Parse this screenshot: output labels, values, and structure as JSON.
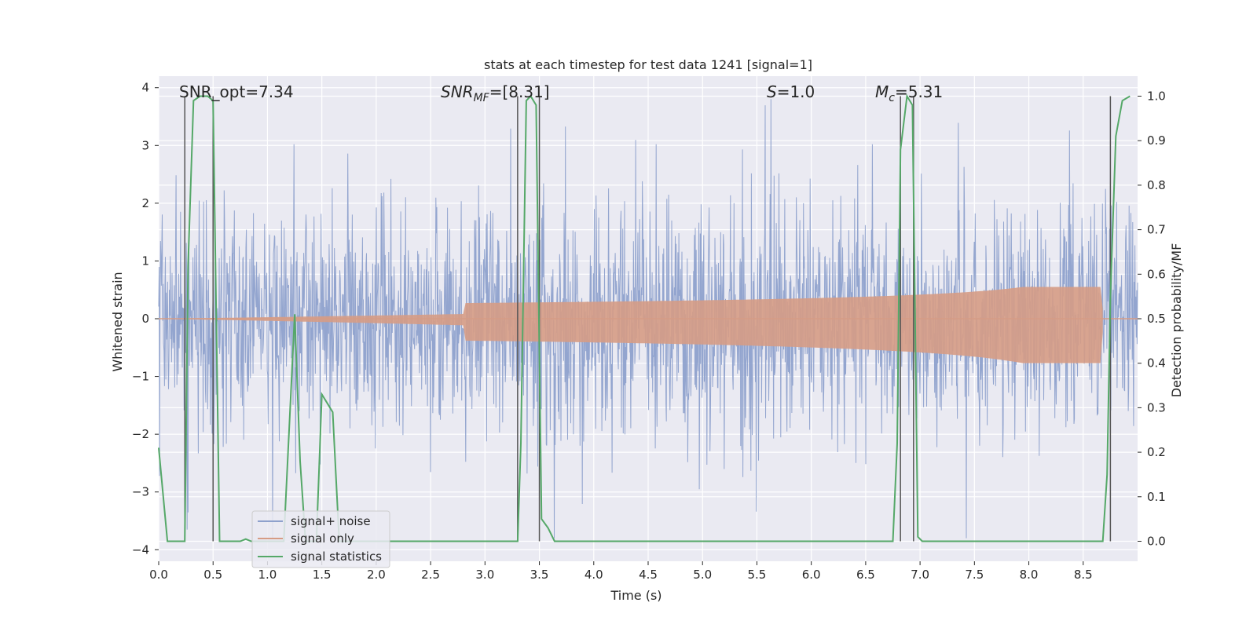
{
  "chart_data": {
    "type": "line",
    "title": "stats at each timestep for test data 1241 [signal=1]",
    "xlabel": "Time (s)",
    "ylabel_left": "Whitened strain",
    "ylabel_right": "Detection probability/MF",
    "xlim": [
      0.0,
      9.0
    ],
    "ylim_left": [
      -4.2,
      4.2
    ],
    "ylim_right": [
      -0.045,
      1.045
    ],
    "x_ticks": [
      "0.0",
      "0.5",
      "1.0",
      "1.5",
      "2.0",
      "2.5",
      "3.0",
      "3.5",
      "4.0",
      "4.5",
      "5.0",
      "5.5",
      "6.0",
      "6.5",
      "7.0",
      "7.5",
      "8.0",
      "8.5"
    ],
    "y_left_ticks": [
      "4",
      "3",
      "2",
      "1",
      "0",
      "−1",
      "−2",
      "−3",
      "−4"
    ],
    "y_right_ticks": [
      "1.0",
      "0.9",
      "0.8",
      "0.7",
      "0.6",
      "0.5",
      "0.4",
      "0.3",
      "0.2",
      "0.1",
      "0.0"
    ],
    "grid": true,
    "legend_position": "lower-left",
    "annotations": {
      "snr_opt": "SNR_opt=7.34",
      "snr_mf_base": "SNR",
      "snr_mf_sub": "MF",
      "snr_mf_value": "=[8.31]",
      "s_letter": "S",
      "s_value": "=1.0",
      "mc_letter": "M",
      "mc_sub": "c",
      "mc_value": "=5.31"
    },
    "series": [
      {
        "name": "signal+ noise",
        "color": "#8ea1cc",
        "description_range": [
          -3.8,
          3.8
        ],
        "typical_envelope": 1.7
      },
      {
        "name": "signal only",
        "color": "#d69c85",
        "chirp_peak_time": 8.68,
        "chirp_peak_amplitude": 0.55
      },
      {
        "name": "signal statistics",
        "color": "#55a868",
        "x": [
          0.0,
          0.08,
          0.24,
          0.27,
          0.32,
          0.38,
          0.45,
          0.5,
          0.56,
          0.6,
          0.75,
          0.8,
          0.85,
          1.0,
          1.15,
          1.25,
          1.3,
          1.35,
          1.45,
          1.5,
          1.55,
          1.6,
          1.66,
          1.75,
          3.3,
          3.33,
          3.38,
          3.42,
          3.47,
          3.52,
          3.58,
          3.64,
          3.75,
          6.75,
          6.79,
          6.82,
          6.88,
          6.93,
          6.98,
          7.02,
          7.1,
          8.68,
          8.72,
          8.75,
          8.8,
          8.86,
          8.93
        ],
        "values": [
          0.21,
          0.0,
          0.0,
          0.62,
          0.99,
          1.0,
          1.0,
          0.99,
          0.0,
          0.0,
          0.0,
          0.005,
          0.0,
          0.0,
          0.0,
          0.51,
          0.18,
          0.0,
          0.0,
          0.33,
          0.31,
          0.29,
          0.0,
          0.0,
          0.0,
          0.22,
          0.99,
          1.0,
          0.98,
          0.05,
          0.03,
          0.0,
          0.0,
          0.0,
          0.22,
          0.88,
          1.0,
          0.98,
          0.01,
          0.0,
          0.0,
          0.0,
          0.15,
          0.55,
          0.91,
          0.99,
          1.0
        ]
      }
    ],
    "vertical_markers_s": [
      0.24,
      0.5,
      3.3,
      3.5,
      6.82,
      6.94,
      8.75
    ]
  }
}
